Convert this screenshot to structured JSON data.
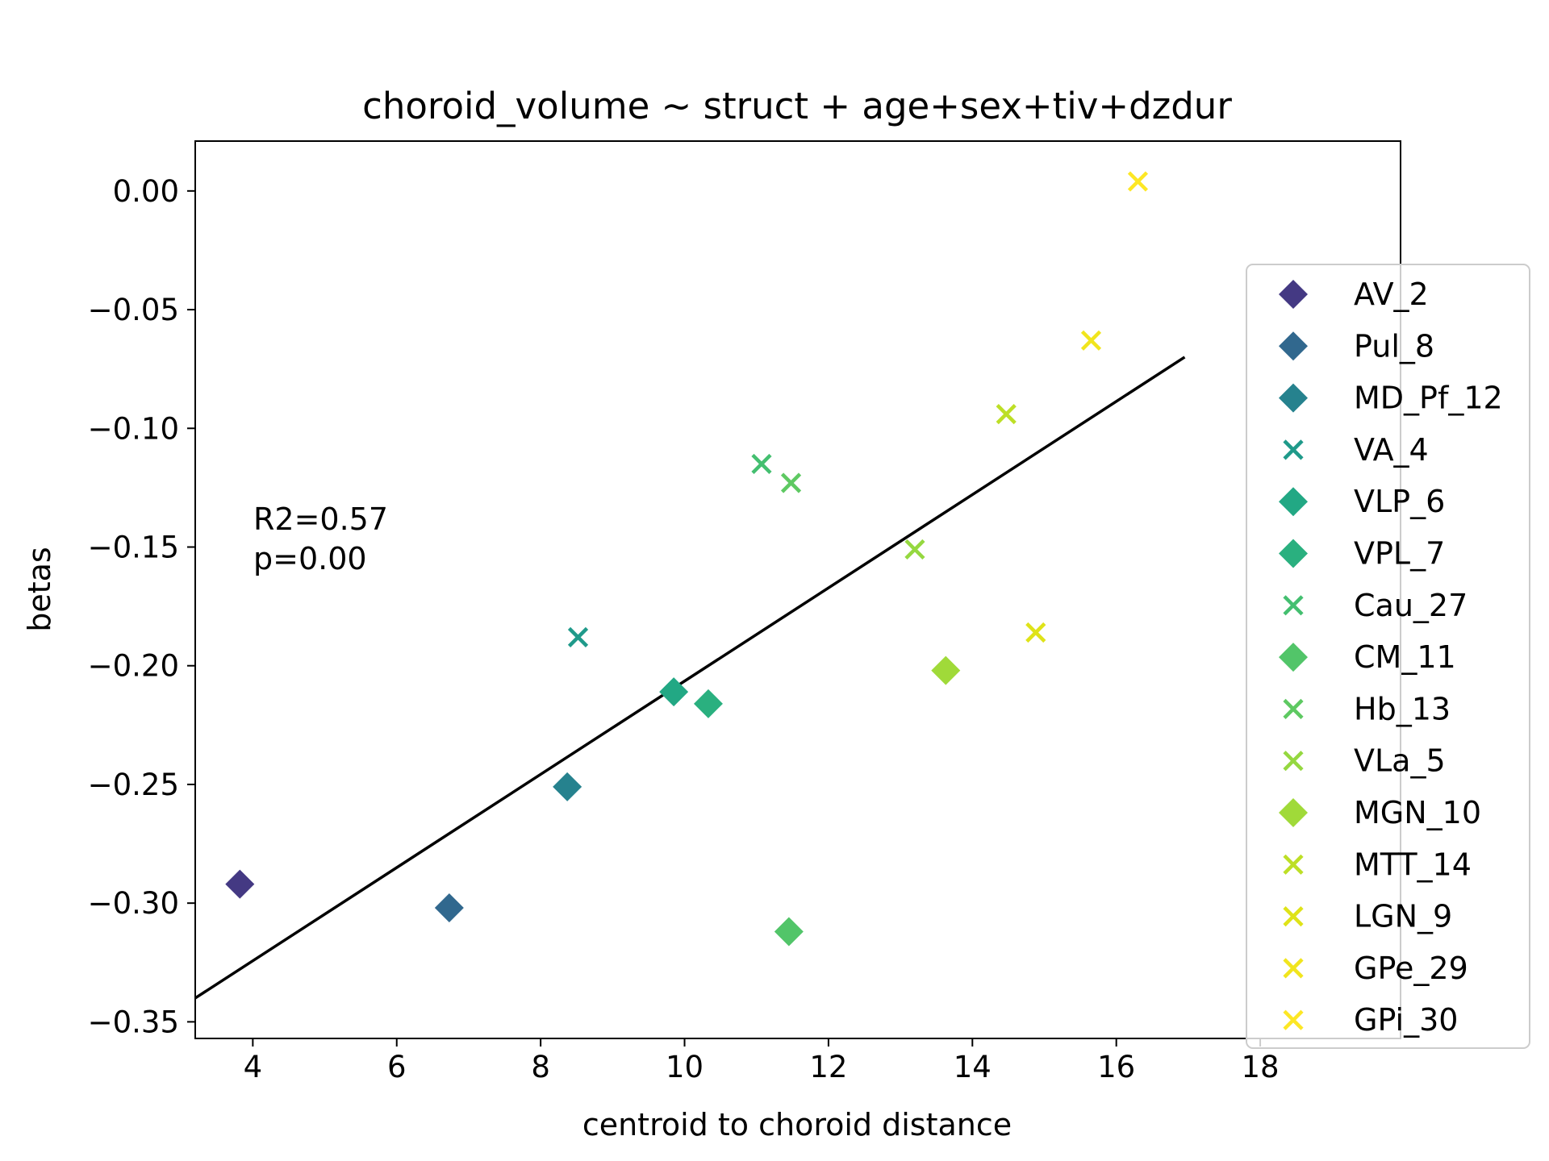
{
  "chart_data": {
    "type": "scatter",
    "title": "choroid_volume ~ struct + age+sex+tiv+dzdur",
    "xlabel": "centroid to choroid distance",
    "ylabel": "betas",
    "xlim": [
      3.2,
      19.95
    ],
    "ylim": [
      -0.357,
      0.021
    ],
    "xticks": [
      {
        "value": 4,
        "label": "4"
      },
      {
        "value": 6,
        "label": "6"
      },
      {
        "value": 8,
        "label": "8"
      },
      {
        "value": 10,
        "label": "10"
      },
      {
        "value": 12,
        "label": "12"
      },
      {
        "value": 14,
        "label": "14"
      },
      {
        "value": 16,
        "label": "16"
      },
      {
        "value": 18,
        "label": "18"
      }
    ],
    "yticks": [
      {
        "value": 0.0,
        "label": "0.00"
      },
      {
        "value": -0.05,
        "label": "−0.05"
      },
      {
        "value": -0.1,
        "label": "−0.10"
      },
      {
        "value": -0.15,
        "label": "−0.15"
      },
      {
        "value": -0.2,
        "label": "−0.20"
      },
      {
        "value": -0.25,
        "label": "−0.25"
      },
      {
        "value": -0.3,
        "label": "−0.30"
      },
      {
        "value": -0.35,
        "label": "−0.35"
      }
    ],
    "grid": false,
    "legend_position": "right",
    "series": [
      {
        "name": "AV_2",
        "marker": "diamond",
        "color": "#443983",
        "points": [
          {
            "x": 3.82,
            "y": -0.292
          }
        ]
      },
      {
        "name": "Pul_8",
        "marker": "diamond",
        "color": "#31688e",
        "points": [
          {
            "x": 6.73,
            "y": -0.302
          }
        ]
      },
      {
        "name": "MD_Pf_12",
        "marker": "diamond",
        "color": "#26828e",
        "points": [
          {
            "x": 8.37,
            "y": -0.251
          }
        ]
      },
      {
        "name": "VA_4",
        "marker": "x",
        "color": "#1f9a8a",
        "points": [
          {
            "x": 8.52,
            "y": -0.188
          }
        ]
      },
      {
        "name": "VLP_6",
        "marker": "diamond",
        "color": "#22a884",
        "points": [
          {
            "x": 9.85,
            "y": -0.211
          }
        ]
      },
      {
        "name": "VPL_7",
        "marker": "diamond",
        "color": "#2ab07f",
        "points": [
          {
            "x": 10.33,
            "y": -0.216
          }
        ]
      },
      {
        "name": "Cau_27",
        "marker": "x",
        "color": "#44bf70",
        "points": [
          {
            "x": 11.07,
            "y": -0.115
          }
        ]
      },
      {
        "name": "CM_11",
        "marker": "diamond",
        "color": "#52c569",
        "points": [
          {
            "x": 11.45,
            "y": -0.312
          }
        ]
      },
      {
        "name": "Hb_13",
        "marker": "x",
        "color": "#5ec962",
        "points": [
          {
            "x": 11.48,
            "y": -0.123
          }
        ]
      },
      {
        "name": "VLa_5",
        "marker": "x",
        "color": "#95d840",
        "points": [
          {
            "x": 13.2,
            "y": -0.151
          }
        ]
      },
      {
        "name": "MGN_10",
        "marker": "diamond",
        "color": "#a0da39",
        "points": [
          {
            "x": 13.63,
            "y": -0.202
          }
        ]
      },
      {
        "name": "MTT_14",
        "marker": "x",
        "color": "#bddf26",
        "points": [
          {
            "x": 14.47,
            "y": -0.094
          }
        ]
      },
      {
        "name": "LGN_9",
        "marker": "x",
        "color": "#dfe318",
        "points": [
          {
            "x": 14.88,
            "y": -0.186
          }
        ]
      },
      {
        "name": "GPe_29",
        "marker": "x",
        "color": "#f1e51d",
        "points": [
          {
            "x": 15.65,
            "y": -0.063
          }
        ]
      },
      {
        "name": "GPi_30",
        "marker": "x",
        "color": "#fde725",
        "points": [
          {
            "x": 16.3,
            "y": 0.004
          }
        ]
      }
    ],
    "fit_line": {
      "color": "#000000",
      "points": [
        {
          "x": 3.2,
          "y": -0.34
        },
        {
          "x": 16.95,
          "y": -0.07
        }
      ]
    },
    "annotations": [
      "R2=0.57",
      "p=0.00"
    ]
  }
}
